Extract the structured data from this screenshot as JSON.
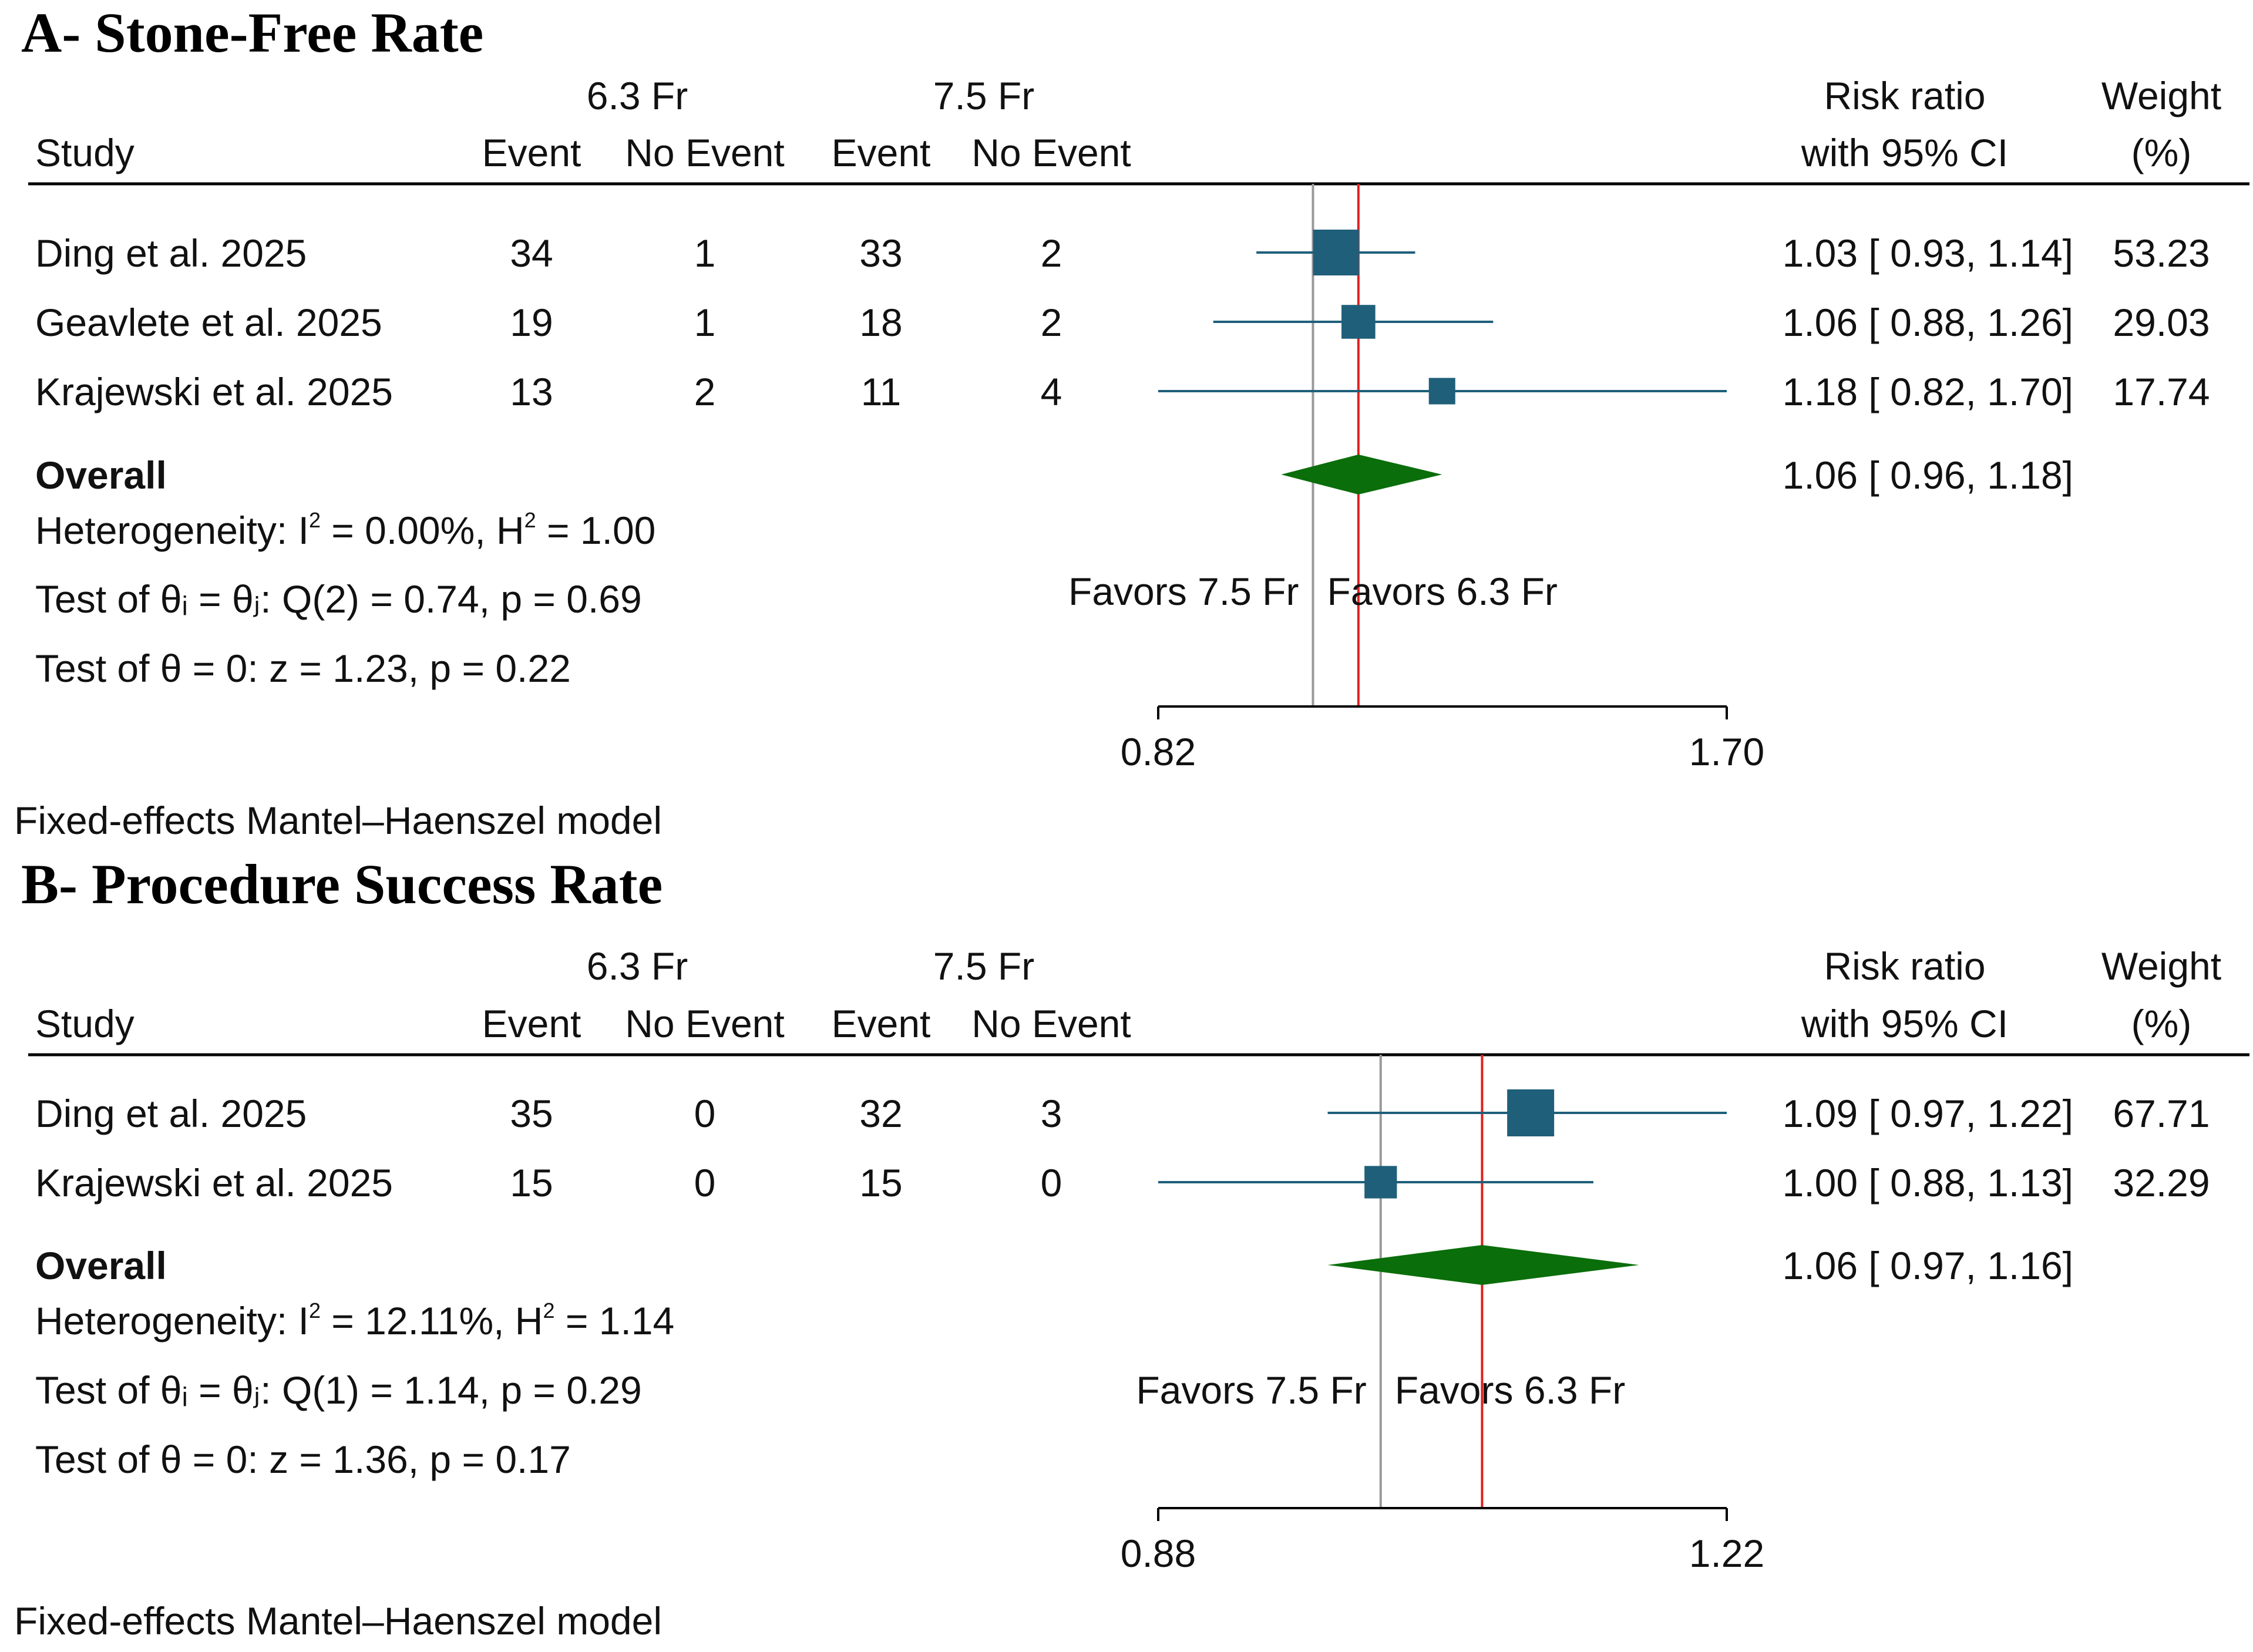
{
  "chart_data": [
    {
      "type": "forest",
      "title": "A- Stone-Free Rate",
      "group_labels": [
        "6.3 Fr",
        "7.5 Fr"
      ],
      "columns": {
        "study": "Study",
        "event": "Event",
        "no_event": "No Event",
        "rr_line1": "Risk ratio",
        "rr_line2": "with 95% CI",
        "weight_line1": "Weight",
        "weight_line2": "(%)"
      },
      "studies": [
        {
          "name": "Ding et al. 2025",
          "e1": "34",
          "ne1": "1",
          "e2": "33",
          "ne2": "2",
          "rr": 1.03,
          "lo": 0.93,
          "hi": 1.14,
          "ci_text": "1.03 [ 0.93,  1.14]",
          "weight": "53.23",
          "w": 53.23
        },
        {
          "name": "Geavlete et al. 2025",
          "e1": "19",
          "ne1": "1",
          "e2": "18",
          "ne2": "2",
          "rr": 1.06,
          "lo": 0.88,
          "hi": 1.26,
          "ci_text": "1.06 [ 0.88,  1.26]",
          "weight": "29.03",
          "w": 29.03
        },
        {
          "name": "Krajewski et al. 2025",
          "e1": "13",
          "ne1": "2",
          "e2": "11",
          "ne2": "4",
          "rr": 1.18,
          "lo": 0.82,
          "hi": 1.7,
          "ci_text": "1.18 [ 0.82,  1.70]",
          "weight": "17.74",
          "w": 17.74
        }
      ],
      "overall": {
        "label": "Overall",
        "rr": 1.06,
        "lo": 0.96,
        "hi": 1.18,
        "ci_text": "1.06 [ 0.96,  1.18]"
      },
      "heterogeneity": {
        "prefix": "Heterogeneity: I",
        "mid": " = 0.00%, H",
        "suffix": " = 1.00",
        "sup": "2"
      },
      "test_q": "Test of θᵢ = θⱼ: Q(2) = 0.74, p = 0.69",
      "test_z": "Test of θ = 0: z = 1.23, p = 0.22",
      "favors_left": "Favors 7.5 Fr",
      "favors_right": "Favors 6.3 Fr",
      "axis": {
        "min": 0.82,
        "max": 1.7,
        "ticks": [
          "0.82",
          "1.70"
        ],
        "scale": "log",
        "null": 1.0
      },
      "footnote": "Fixed-effects Mantel–Haenszel model"
    },
    {
      "type": "forest",
      "title": "B- Procedure Success Rate",
      "group_labels": [
        "6.3 Fr",
        "7.5 Fr"
      ],
      "columns": {
        "study": "Study",
        "event": "Event",
        "no_event": "No Event",
        "rr_line1": "Risk ratio",
        "rr_line2": "with 95% CI",
        "weight_line1": "Weight",
        "weight_line2": "(%)"
      },
      "studies": [
        {
          "name": "Ding et al. 2025",
          "e1": "35",
          "ne1": "0",
          "e2": "32",
          "ne2": "3",
          "rr": 1.09,
          "lo": 0.97,
          "hi": 1.22,
          "ci_text": "1.09 [ 0.97,  1.22]",
          "weight": "67.71",
          "w": 67.71
        },
        {
          "name": "Krajewski et al. 2025",
          "e1": "15",
          "ne1": "0",
          "e2": "15",
          "ne2": "0",
          "rr": 1.0,
          "lo": 0.88,
          "hi": 1.13,
          "ci_text": "1.00 [ 0.88,  1.13]",
          "weight": "32.29",
          "w": 32.29
        }
      ],
      "overall": {
        "label": "Overall",
        "rr": 1.06,
        "lo": 0.97,
        "hi": 1.16,
        "ci_text": "1.06 [ 0.97,  1.16]"
      },
      "heterogeneity": {
        "prefix": "Heterogeneity: I",
        "mid": " = 12.11%, H",
        "suffix": " = 1.14",
        "sup": "2"
      },
      "test_q": "Test of θᵢ = θⱼ: Q(1) = 1.14, p = 0.29",
      "test_z": "Test of θ = 0: z = 1.36, p = 0.17",
      "favors_left": "Favors 7.5 Fr",
      "favors_right": "Favors 6.3 Fr",
      "axis": {
        "min": 0.88,
        "max": 1.22,
        "ticks": [
          "0.88",
          "1.22"
        ],
        "scale": "log",
        "null": 1.0
      },
      "footnote": "Fixed-effects Mantel–Haenszel model"
    }
  ],
  "colors": {
    "square": "#1f5f7a",
    "line": "#1f5f7a",
    "diamond": "#0a6e0a",
    "null_line": "#999999",
    "overall_line": "#e02020",
    "text": "#111111"
  }
}
